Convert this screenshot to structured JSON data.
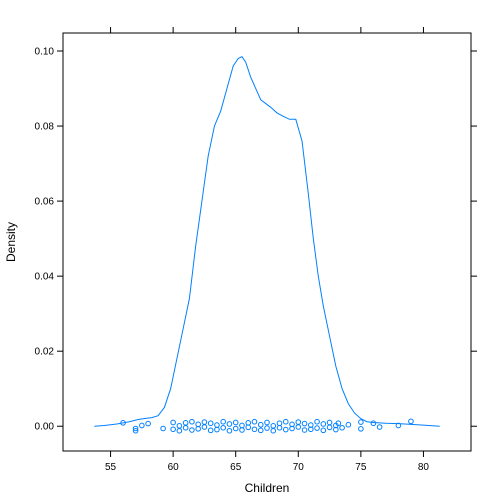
{
  "chart_data": {
    "type": "line",
    "xlabel": "Children",
    "ylabel": "Density",
    "xlim": [
      51.2,
      83.8
    ],
    "ylim": [
      -0.0066,
      0.1048
    ],
    "grid": false,
    "x_ticks": [
      55,
      60,
      65,
      70,
      75,
      80
    ],
    "x_tick_labels": [
      "55",
      "60",
      "65",
      "70",
      "75",
      "80"
    ],
    "y_ticks": [
      0.0,
      0.02,
      0.04,
      0.06,
      0.08,
      0.1
    ],
    "y_tick_labels": [
      "0.00",
      "0.02",
      "0.04",
      "0.06",
      "0.08",
      "0.10"
    ],
    "series": [
      {
        "style": "density-line",
        "color": "#0080ff",
        "x": [
          53.7,
          54.5,
          55.5,
          56.5,
          57.2,
          57.8,
          58.3,
          58.8,
          59.3,
          59.8,
          60.3,
          60.8,
          61.3,
          61.8,
          62.3,
          62.8,
          63.3,
          63.8,
          64.3,
          64.8,
          65.2,
          65.5,
          65.8,
          66.2,
          66.6,
          67.0,
          67.4,
          67.8,
          68.3,
          68.8,
          69.3,
          69.8,
          70.3,
          70.8,
          71.2,
          71.6,
          72.0,
          72.5,
          73.0,
          73.5,
          74.0,
          74.5,
          75.0,
          75.5,
          76.0,
          76.5,
          77.0,
          78.0,
          79.0,
          80.0,
          81.3
        ],
        "y": [
          0.0,
          0.0002,
          0.0006,
          0.0012,
          0.0018,
          0.0021,
          0.0023,
          0.0028,
          0.005,
          0.01,
          0.018,
          0.026,
          0.034,
          0.048,
          0.06,
          0.072,
          0.08,
          0.084,
          0.09,
          0.096,
          0.098,
          0.0985,
          0.097,
          0.093,
          0.09,
          0.087,
          0.086,
          0.085,
          0.0835,
          0.0826,
          0.0818,
          0.0818,
          0.076,
          0.062,
          0.05,
          0.04,
          0.032,
          0.024,
          0.016,
          0.01,
          0.006,
          0.0035,
          0.002,
          0.0012,
          0.001,
          0.0009,
          0.0008,
          0.0007,
          0.0005,
          0.0003,
          0.0
        ]
      },
      {
        "style": "rug-points",
        "color": "#0080ff",
        "x": [
          56,
          57,
          57,
          57.5,
          58,
          59.2,
          60,
          60,
          60.5,
          60.5,
          61,
          61,
          61.5,
          61.5,
          62,
          62,
          62.5,
          62.5,
          63,
          63,
          63.5,
          63.5,
          64,
          64,
          64.5,
          64.5,
          65,
          65,
          65.5,
          65.5,
          66,
          66,
          66.5,
          66.5,
          67,
          67,
          67.5,
          67.5,
          68,
          68,
          68.5,
          68.5,
          69,
          69,
          69.5,
          69.5,
          70,
          70,
          70.5,
          70.5,
          71,
          71,
          71.5,
          71.5,
          72,
          72,
          72.5,
          72.5,
          73,
          73,
          73.2,
          73.5,
          74,
          75,
          75,
          76,
          76.5,
          78,
          79
        ],
        "y": [
          0.0009,
          -0.0006,
          -0.0012,
          0.0002,
          0.0007,
          -0.0006,
          0.001,
          -0.0008,
          0.0001,
          -0.0012,
          0.0009,
          -0.0004,
          0.0012,
          -0.001,
          0.0005,
          -0.0007,
          0.0011,
          -0.0002,
          -0.0011,
          0.0008,
          0.0003,
          -0.0009,
          0.0012,
          -0.0004,
          0.0006,
          -0.0012,
          0.001,
          -0.0006,
          0.0002,
          -0.001,
          0.0009,
          -0.0003,
          0.0012,
          -0.0008,
          0.0004,
          -0.0011,
          0.001,
          -0.0005,
          0.0001,
          -0.0012,
          0.0008,
          -0.0004,
          0.0012,
          -0.0009,
          0.0005,
          -0.0006,
          0.0011,
          -0.0002,
          -0.001,
          0.0007,
          0.0003,
          -0.0008,
          0.0012,
          -0.0005,
          0.0006,
          -0.0011,
          0.001,
          -0.0003,
          0.0002,
          -0.0009,
          0.0008,
          -0.0004,
          0.0004,
          0.0011,
          -0.0007,
          0.0008,
          -0.0002,
          0.0002,
          0.0013
        ]
      }
    ]
  }
}
